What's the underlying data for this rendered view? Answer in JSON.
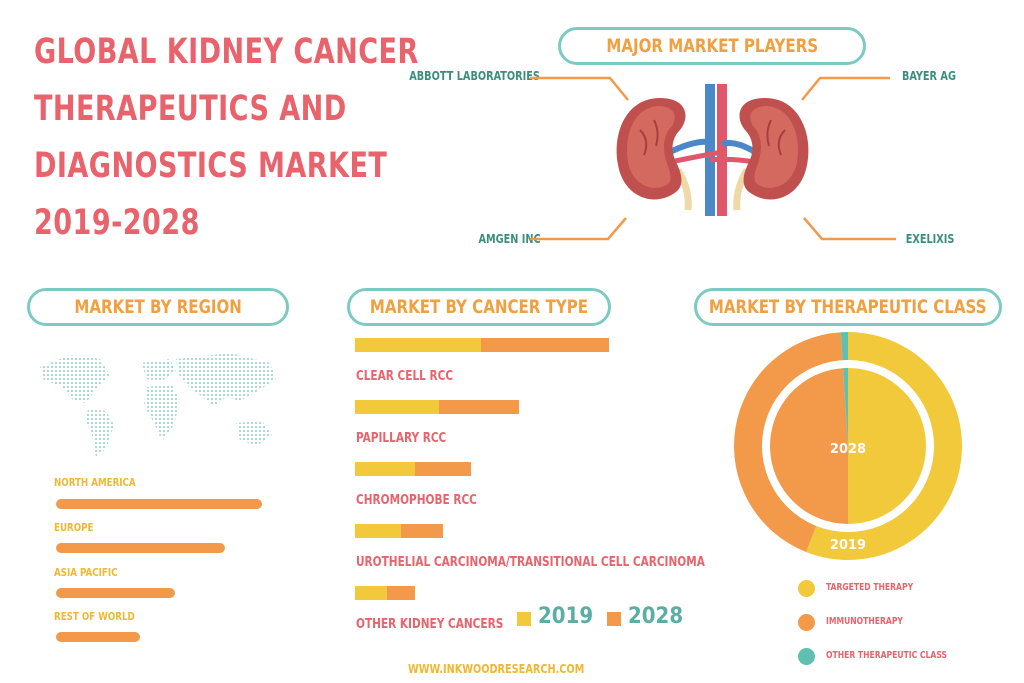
{
  "title_lines": [
    "GLOBAL KIDNEY CANCER",
    "THERAPEUTICS AND",
    "DIAGNOSTICS MARKET",
    "2019-2028"
  ],
  "players": {
    "heading": "MAJOR MARKET PLAYERS",
    "names": [
      "ABBOTT LABORATORIES",
      "BAYER AG",
      "AMGEN INC",
      "EXELIXIS"
    ]
  },
  "colors": {
    "coral": "#e8636b",
    "teal": "#7ccbc3",
    "orange": "#f29a4a",
    "yellow": "#f2c93a",
    "teal_dark": "#5aaea3"
  },
  "region": {
    "heading": "MARKET BY REGION",
    "icon": "world-map-icon",
    "chart_data": {
      "type": "bar",
      "categories": [
        "NORTH AMERICA",
        "EUROPE",
        "ASIA PACIFIC",
        "REST OF WORLD"
      ],
      "values": [
        100,
        82,
        58,
        41
      ]
    }
  },
  "cancer_type": {
    "heading": "MARKET BY CANCER TYPE",
    "legend": [
      "2019",
      "2028"
    ],
    "chart_data": {
      "type": "bar",
      "stacked": true,
      "categories": [
        "CLEAR CELL RCC",
        "PAPILLARY RCC",
        "CHROMOPHOBE RCC",
        "UROTHELIAL CARCINOMA/TRANSITIONAL CELL CARCINOMA",
        "OTHER KIDNEY CANCERS"
      ],
      "series": [
        {
          "name": "2019",
          "values": [
            126,
            84,
            60,
            46,
            32
          ]
        },
        {
          "name": "2028",
          "values": [
            128,
            80,
            56,
            42,
            28
          ]
        }
      ]
    }
  },
  "therapeutic": {
    "heading": "MARKET BY THERAPEUTIC CLASS",
    "outer_label": "2019",
    "inner_label": "2028",
    "legend": [
      "TARGETED THERAPY",
      "IMMUNOTHERAPY",
      "OTHER THERAPEUTIC CLASS"
    ],
    "chart_data": {
      "type": "pie",
      "rings": [
        {
          "name": "2019",
          "labels": [
            "TARGETED THERAPY",
            "IMMUNOTHERAPY",
            "OTHER THERAPEUTIC CLASS"
          ],
          "values": [
            56,
            43,
            1
          ]
        },
        {
          "name": "2028",
          "labels": [
            "TARGETED THERAPY",
            "IMMUNOTHERAPY",
            "OTHER THERAPEUTIC CLASS"
          ],
          "values": [
            50,
            49,
            1
          ]
        }
      ]
    }
  },
  "footer": "WWW.INKWOODRESEARCH.COM"
}
